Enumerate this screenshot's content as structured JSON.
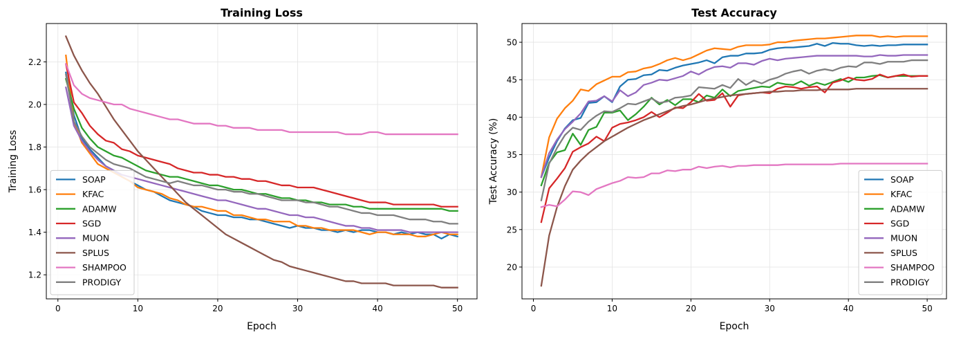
{
  "chart_data": [
    {
      "type": "line",
      "title": "Training Loss",
      "xlabel": "Epoch",
      "ylabel": "Training Loss",
      "xlim": [
        -1.45,
        52.45
      ],
      "ylim": [
        1.087,
        2.38
      ],
      "xticks": [
        0,
        10,
        20,
        30,
        40,
        50
      ],
      "yticks": [
        1.2,
        1.4,
        1.6,
        1.8,
        2.0,
        2.2
      ],
      "ytick_labels": [
        "1.2",
        "1.4",
        "1.6",
        "1.8",
        "2.0",
        "2.2"
      ],
      "grid": true,
      "legend_position": "lower-left",
      "x": [
        1,
        2,
        3,
        4,
        5,
        6,
        7,
        8,
        9,
        10,
        11,
        12,
        13,
        14,
        15,
        16,
        17,
        18,
        19,
        20,
        21,
        22,
        23,
        24,
        25,
        26,
        27,
        28,
        29,
        30,
        31,
        32,
        33,
        34,
        35,
        36,
        37,
        38,
        39,
        40,
        41,
        42,
        43,
        44,
        45,
        46,
        47,
        48,
        49,
        50
      ],
      "series": [
        {
          "name": "SOAP",
          "color": "#1f77b4",
          "values": [
            2.15,
            1.95,
            1.84,
            1.79,
            1.75,
            1.71,
            1.69,
            1.66,
            1.64,
            1.62,
            1.6,
            1.59,
            1.57,
            1.55,
            1.54,
            1.53,
            1.52,
            1.5,
            1.49,
            1.48,
            1.48,
            1.47,
            1.47,
            1.46,
            1.46,
            1.45,
            1.44,
            1.43,
            1.42,
            1.43,
            1.42,
            1.42,
            1.41,
            1.41,
            1.4,
            1.41,
            1.4,
            1.41,
            1.41,
            1.4,
            1.4,
            1.39,
            1.4,
            1.39,
            1.4,
            1.39,
            1.39,
            1.37,
            1.39,
            1.38
          ]
        },
        {
          "name": "KFAC",
          "color": "#ff7f0e",
          "values": [
            2.23,
            1.92,
            1.82,
            1.77,
            1.72,
            1.7,
            1.68,
            1.66,
            1.64,
            1.61,
            1.6,
            1.59,
            1.58,
            1.56,
            1.55,
            1.53,
            1.52,
            1.52,
            1.51,
            1.5,
            1.5,
            1.48,
            1.48,
            1.47,
            1.46,
            1.46,
            1.45,
            1.45,
            1.45,
            1.43,
            1.43,
            1.42,
            1.42,
            1.41,
            1.41,
            1.41,
            1.41,
            1.4,
            1.39,
            1.4,
            1.4,
            1.39,
            1.39,
            1.39,
            1.38,
            1.38,
            1.39,
            1.4,
            1.39,
            1.39
          ]
        },
        {
          "name": "ADAMW",
          "color": "#2ca02c",
          "values": [
            2.12,
            1.98,
            1.89,
            1.84,
            1.8,
            1.78,
            1.76,
            1.75,
            1.73,
            1.71,
            1.69,
            1.68,
            1.67,
            1.66,
            1.66,
            1.65,
            1.64,
            1.63,
            1.62,
            1.62,
            1.61,
            1.6,
            1.6,
            1.59,
            1.58,
            1.58,
            1.57,
            1.56,
            1.56,
            1.55,
            1.55,
            1.54,
            1.54,
            1.53,
            1.53,
            1.53,
            1.52,
            1.52,
            1.51,
            1.51,
            1.51,
            1.51,
            1.51,
            1.51,
            1.51,
            1.51,
            1.51,
            1.51,
            1.5,
            1.5
          ]
        },
        {
          "name": "SGD",
          "color": "#d62728",
          "values": [
            2.19,
            2.01,
            1.96,
            1.9,
            1.86,
            1.83,
            1.82,
            1.79,
            1.78,
            1.76,
            1.75,
            1.74,
            1.73,
            1.72,
            1.7,
            1.69,
            1.68,
            1.68,
            1.67,
            1.67,
            1.66,
            1.66,
            1.65,
            1.65,
            1.64,
            1.64,
            1.63,
            1.62,
            1.62,
            1.61,
            1.61,
            1.61,
            1.6,
            1.59,
            1.58,
            1.57,
            1.56,
            1.55,
            1.54,
            1.54,
            1.54,
            1.53,
            1.53,
            1.53,
            1.53,
            1.53,
            1.53,
            1.52,
            1.52,
            1.52
          ]
        },
        {
          "name": "MUON",
          "color": "#9467bd",
          "values": [
            2.08,
            1.9,
            1.83,
            1.78,
            1.74,
            1.71,
            1.69,
            1.67,
            1.66,
            1.65,
            1.64,
            1.63,
            1.62,
            1.61,
            1.6,
            1.59,
            1.58,
            1.57,
            1.56,
            1.55,
            1.55,
            1.54,
            1.53,
            1.52,
            1.51,
            1.51,
            1.5,
            1.49,
            1.48,
            1.48,
            1.47,
            1.47,
            1.46,
            1.45,
            1.44,
            1.43,
            1.43,
            1.42,
            1.42,
            1.41,
            1.41,
            1.41,
            1.41,
            1.4,
            1.4,
            1.4,
            1.4,
            1.4,
            1.4,
            1.4
          ]
        },
        {
          "name": "SPLUS",
          "color": "#8c564b",
          "values": [
            2.32,
            2.23,
            2.16,
            2.1,
            2.05,
            1.99,
            1.93,
            1.88,
            1.83,
            1.78,
            1.74,
            1.7,
            1.66,
            1.62,
            1.58,
            1.54,
            1.51,
            1.48,
            1.45,
            1.42,
            1.39,
            1.37,
            1.35,
            1.33,
            1.31,
            1.29,
            1.27,
            1.26,
            1.24,
            1.23,
            1.22,
            1.21,
            1.2,
            1.19,
            1.18,
            1.17,
            1.17,
            1.16,
            1.16,
            1.16,
            1.16,
            1.15,
            1.15,
            1.15,
            1.15,
            1.15,
            1.15,
            1.14,
            1.14,
            1.14
          ]
        },
        {
          "name": "SHAMPOO",
          "color": "#e377c2",
          "values": [
            2.19,
            2.09,
            2.05,
            2.03,
            2.02,
            2.01,
            2.0,
            2.0,
            1.98,
            1.97,
            1.96,
            1.95,
            1.94,
            1.93,
            1.93,
            1.92,
            1.91,
            1.91,
            1.91,
            1.9,
            1.9,
            1.89,
            1.89,
            1.89,
            1.88,
            1.88,
            1.88,
            1.88,
            1.87,
            1.87,
            1.87,
            1.87,
            1.87,
            1.87,
            1.87,
            1.86,
            1.86,
            1.86,
            1.87,
            1.87,
            1.86,
            1.86,
            1.86,
            1.86,
            1.86,
            1.86,
            1.86,
            1.86,
            1.86,
            1.86
          ]
        },
        {
          "name": "PRODIGY",
          "color": "#7f7f7f",
          "values": [
            2.14,
            1.92,
            1.85,
            1.8,
            1.77,
            1.74,
            1.72,
            1.71,
            1.7,
            1.68,
            1.66,
            1.65,
            1.64,
            1.63,
            1.64,
            1.63,
            1.62,
            1.62,
            1.61,
            1.6,
            1.6,
            1.59,
            1.59,
            1.58,
            1.58,
            1.57,
            1.56,
            1.55,
            1.55,
            1.55,
            1.54,
            1.54,
            1.53,
            1.52,
            1.52,
            1.51,
            1.5,
            1.49,
            1.49,
            1.48,
            1.48,
            1.48,
            1.47,
            1.46,
            1.46,
            1.46,
            1.45,
            1.45,
            1.44,
            1.44
          ]
        }
      ]
    },
    {
      "type": "line",
      "title": "Test Accuracy",
      "xlabel": "Epoch",
      "ylabel": "Test Accuracy (%)",
      "xlim": [
        -1.45,
        52.45
      ],
      "ylim": [
        15.75,
        52.5
      ],
      "xticks": [
        0,
        10,
        20,
        30,
        40,
        50
      ],
      "yticks": [
        20,
        25,
        30,
        35,
        40,
        45,
        50
      ],
      "ytick_labels": [
        "20",
        "25",
        "30",
        "35",
        "40",
        "45",
        "50"
      ],
      "grid": true,
      "legend_position": "lower-right",
      "x": [
        1,
        2,
        3,
        4,
        5,
        6,
        7,
        8,
        9,
        10,
        11,
        12,
        13,
        14,
        15,
        16,
        17,
        18,
        19,
        20,
        21,
        22,
        23,
        24,
        25,
        26,
        27,
        28,
        29,
        30,
        31,
        32,
        33,
        34,
        35,
        36,
        37,
        38,
        39,
        40,
        41,
        42,
        43,
        44,
        45,
        46,
        47,
        48,
        49,
        50
      ],
      "series": [
        {
          "name": "SOAP",
          "color": "#1f77b4",
          "values": [
            32.0,
            34.6,
            36.8,
            38.5,
            39.6,
            39.9,
            41.9,
            42.0,
            42.8,
            42.0,
            44.1,
            45.0,
            45.1,
            45.6,
            45.7,
            46.3,
            46.2,
            46.6,
            46.9,
            47.1,
            47.3,
            47.6,
            47.2,
            48.0,
            48.2,
            48.2,
            48.5,
            48.5,
            48.6,
            49.0,
            49.2,
            49.3,
            49.3,
            49.4,
            49.5,
            49.8,
            49.5,
            49.9,
            49.8,
            49.8,
            49.6,
            49.5,
            49.6,
            49.5,
            49.6,
            49.6,
            49.7,
            49.7,
            49.7,
            49.7
          ]
        },
        {
          "name": "KFAC",
          "color": "#ff7f0e",
          "values": [
            32.0,
            37.3,
            39.8,
            41.2,
            42.2,
            43.7,
            43.5,
            44.4,
            44.9,
            45.4,
            45.4,
            46.0,
            46.1,
            46.5,
            46.7,
            47.1,
            47.6,
            47.9,
            47.6,
            47.9,
            48.4,
            48.9,
            49.2,
            49.1,
            49.0,
            49.4,
            49.6,
            49.6,
            49.6,
            49.7,
            50.0,
            50.0,
            50.2,
            50.3,
            50.4,
            50.5,
            50.5,
            50.6,
            50.7,
            50.8,
            50.9,
            50.9,
            50.9,
            50.7,
            50.8,
            50.7,
            50.8,
            50.8,
            50.8,
            50.8
          ]
        },
        {
          "name": "ADAMW",
          "color": "#2ca02c",
          "values": [
            30.9,
            33.9,
            35.3,
            35.6,
            37.8,
            36.3,
            38.3,
            38.7,
            40.6,
            40.6,
            40.9,
            39.6,
            40.4,
            41.4,
            42.6,
            41.7,
            42.3,
            41.6,
            42.4,
            42.4,
            42.0,
            42.9,
            42.6,
            43.7,
            42.8,
            43.5,
            43.7,
            43.9,
            44.1,
            44.0,
            44.6,
            44.4,
            44.3,
            44.8,
            44.2,
            44.6,
            44.3,
            44.7,
            45.1,
            44.7,
            45.3,
            45.3,
            45.5,
            45.6,
            45.3,
            45.5,
            45.5,
            45.5,
            45.5,
            45.5
          ]
        },
        {
          "name": "SGD",
          "color": "#d62728",
          "values": [
            26.0,
            30.5,
            31.8,
            33.2,
            35.4,
            36.0,
            36.5,
            37.4,
            36.8,
            38.6,
            39.1,
            39.3,
            39.6,
            40.0,
            40.7,
            40.0,
            40.6,
            41.3,
            41.2,
            42.0,
            43.1,
            42.2,
            42.3,
            43.2,
            41.4,
            42.9,
            43.1,
            43.2,
            43.3,
            43.2,
            43.8,
            44.1,
            44.0,
            43.8,
            44.0,
            44.1,
            43.3,
            44.6,
            44.9,
            45.3,
            45.0,
            44.9,
            45.1,
            45.7,
            45.3,
            45.5,
            45.7,
            45.4,
            45.5,
            45.5
          ]
        },
        {
          "name": "MUON",
          "color": "#9467bd",
          "values": [
            32.0,
            35.2,
            37.0,
            38.4,
            39.4,
            40.5,
            42.1,
            42.2,
            42.8,
            42.1,
            43.6,
            42.8,
            43.3,
            44.3,
            44.6,
            45.0,
            44.9,
            45.2,
            45.5,
            46.1,
            45.7,
            46.3,
            46.7,
            46.8,
            46.6,
            47.2,
            47.2,
            47.0,
            47.5,
            47.8,
            47.6,
            47.8,
            47.9,
            48.0,
            48.1,
            48.2,
            48.2,
            48.2,
            48.2,
            48.2,
            48.2,
            48.1,
            48.1,
            48.3,
            48.2,
            48.2,
            48.3,
            48.3,
            48.3,
            48.3
          ]
        },
        {
          "name": "SPLUS",
          "color": "#8c564b",
          "values": [
            17.5,
            24.2,
            28.0,
            30.8,
            33.0,
            34.2,
            35.2,
            36.0,
            36.8,
            37.4,
            38.0,
            38.6,
            39.1,
            39.6,
            40.0,
            40.4,
            40.8,
            41.2,
            41.5,
            41.7,
            42.0,
            42.3,
            42.5,
            42.7,
            42.9,
            43.0,
            43.1,
            43.2,
            43.3,
            43.4,
            43.4,
            43.5,
            43.5,
            43.6,
            43.6,
            43.6,
            43.7,
            43.7,
            43.7,
            43.7,
            43.8,
            43.8,
            43.8,
            43.8,
            43.8,
            43.8,
            43.8,
            43.8,
            43.8,
            43.8
          ]
        },
        {
          "name": "SHAMPOO",
          "color": "#e377c2",
          "values": [
            28.0,
            28.3,
            28.1,
            29.0,
            30.1,
            30.0,
            29.6,
            30.4,
            30.8,
            31.2,
            31.5,
            32.0,
            31.9,
            32.0,
            32.5,
            32.5,
            32.9,
            32.8,
            33.0,
            33.0,
            33.4,
            33.2,
            33.4,
            33.5,
            33.3,
            33.5,
            33.5,
            33.6,
            33.6,
            33.6,
            33.6,
            33.7,
            33.7,
            33.7,
            33.7,
            33.7,
            33.7,
            33.7,
            33.8,
            33.8,
            33.8,
            33.8,
            33.8,
            33.8,
            33.8,
            33.8,
            33.8,
            33.8,
            33.8,
            33.8
          ]
        },
        {
          "name": "PRODIGY",
          "color": "#7f7f7f",
          "values": [
            28.9,
            33.8,
            35.9,
            37.6,
            38.6,
            38.3,
            39.4,
            40.2,
            40.8,
            40.7,
            41.2,
            41.8,
            41.7,
            42.1,
            42.5,
            41.9,
            42.1,
            42.6,
            42.7,
            42.9,
            44.0,
            43.9,
            43.8,
            44.3,
            43.9,
            45.1,
            44.3,
            44.9,
            44.5,
            45.0,
            45.3,
            45.8,
            46.1,
            46.3,
            45.8,
            46.2,
            46.4,
            46.2,
            46.6,
            46.8,
            46.7,
            47.3,
            47.3,
            47.1,
            47.4,
            47.4,
            47.4,
            47.6,
            47.6,
            47.6
          ]
        }
      ]
    }
  ]
}
